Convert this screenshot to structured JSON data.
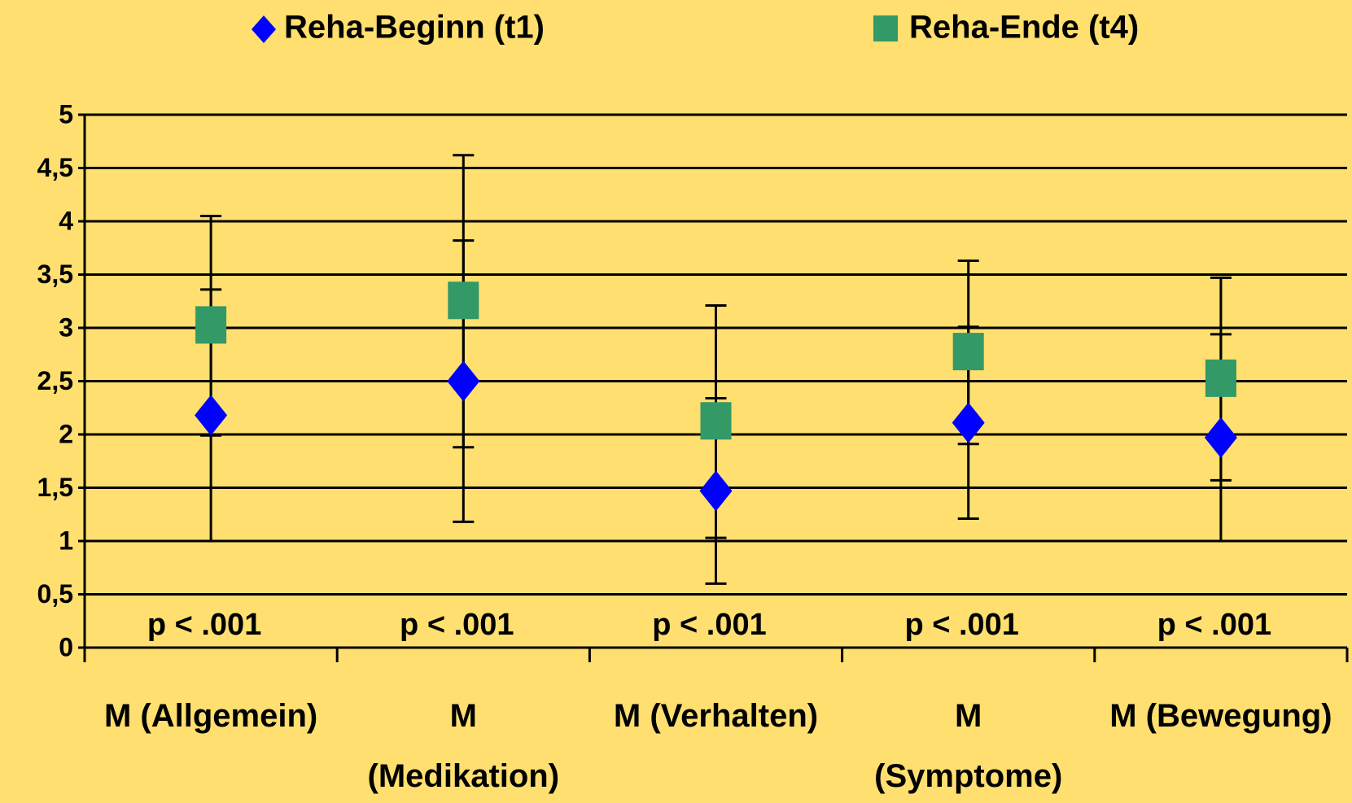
{
  "chart_data": {
    "type": "errorbar",
    "categories": [
      "M (Allgemein)",
      "M\n(Medikation)",
      "M (Verhalten)",
      "M\n(Symptome)",
      "M (Bewegung)"
    ],
    "series": [
      {
        "name": "Reha-Beginn (t1)",
        "color": "#0000FF",
        "marker": "diamond",
        "values": [
          2.18,
          2.5,
          1.47,
          2.11,
          1.97
        ],
        "errors": [
          1.18,
          1.32,
          0.87,
          0.9,
          0.97
        ]
      },
      {
        "name": "Reha-Ende (t4)",
        "color": "#339966",
        "marker": "square",
        "values": [
          3.02,
          3.25,
          2.12,
          2.77,
          2.52
        ],
        "errors": [
          1.03,
          1.37,
          1.09,
          0.86,
          0.95
        ]
      }
    ],
    "annotations": [
      "p < .001",
      "p < .001",
      "p < .001",
      "p < .001",
      "p < .001"
    ],
    "ylim": [
      0,
      5
    ],
    "yticks": [
      0,
      {
        "value": 0.5,
        "label": "0,5"
      },
      1,
      {
        "value": 1.5,
        "label": "1,5"
      },
      2,
      {
        "value": 2.5,
        "label": "2,5"
      },
      3,
      {
        "value": 3.5,
        "label": "3,5"
      },
      4,
      {
        "value": 4.5,
        "label": "4,5"
      },
      5
    ],
    "grid": true
  }
}
